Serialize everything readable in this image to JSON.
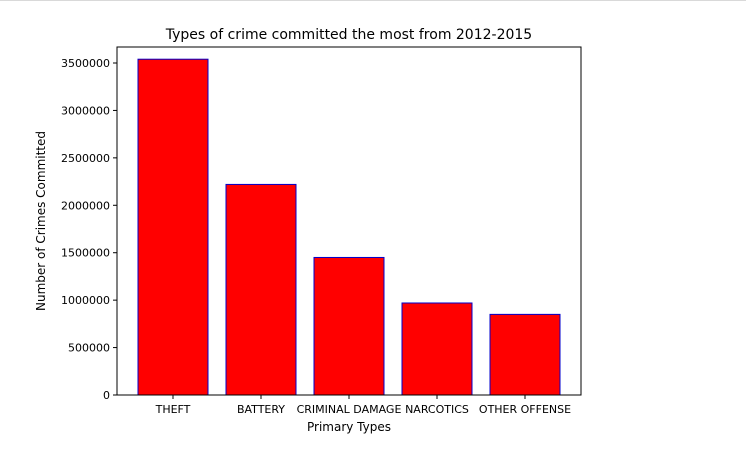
{
  "chart_data": {
    "type": "bar",
    "title": "Types of crime committed the most from 2012-2015",
    "xlabel": "Primary Types",
    "ylabel": "Number of Crimes Committed",
    "categories": [
      "THEFT",
      "BATTERY",
      "CRIMINAL DAMAGE",
      "NARCOTICS",
      "OTHER OFFENSE"
    ],
    "values": [
      3540000,
      2220000,
      1450000,
      970000,
      850000
    ],
    "yticks": [
      0,
      500000,
      1000000,
      1500000,
      2000000,
      2500000,
      3000000,
      3500000
    ],
    "ytick_labels": [
      "0",
      "500000",
      "1000000",
      "1500000",
      "2000000",
      "2500000",
      "3000000",
      "3500000"
    ],
    "ylim": [
      0,
      3500000
    ],
    "grid": false,
    "colors": {
      "bar_fill": "#ff0000",
      "bar_edge": "#0000cc",
      "axis": "#000000"
    }
  }
}
